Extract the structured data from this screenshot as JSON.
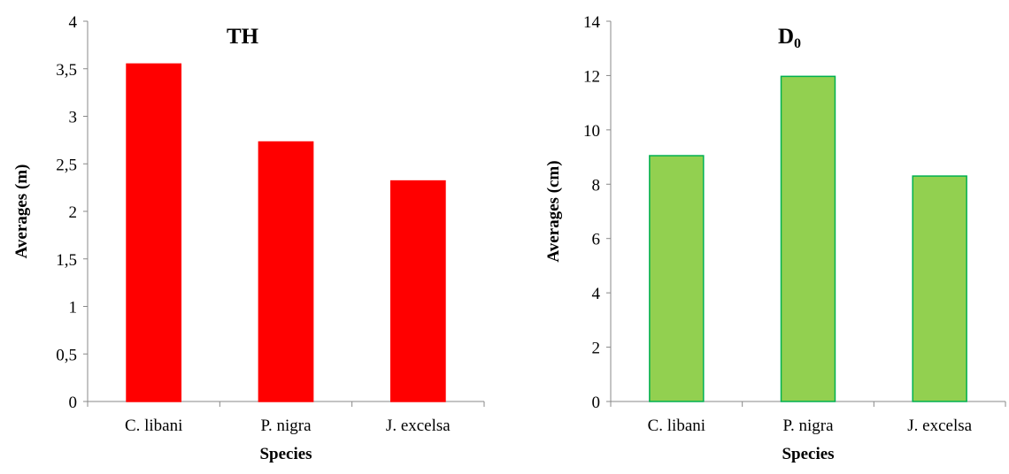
{
  "chart_data": [
    {
      "type": "bar",
      "title": "TH",
      "title_subscript": "",
      "xlabel": "Species",
      "ylabel": "Averages (m)",
      "categories": [
        "C. libani",
        "P. nigra",
        "J. excelsa"
      ],
      "values": [
        3.55,
        2.73,
        2.32
      ],
      "ylim": [
        0,
        4
      ],
      "yticks": [
        0,
        0.5,
        1,
        1.5,
        2,
        2.5,
        3,
        3.5,
        4
      ],
      "ytick_labels": [
        "0",
        "0,5",
        "1",
        "1,5",
        "2",
        "2,5",
        "3",
        "3,5",
        "4"
      ],
      "bar_color": "#ff0000",
      "bar_border": "#ff0000",
      "grid": false,
      "legend": "none"
    },
    {
      "type": "bar",
      "title": "D",
      "title_subscript": "0",
      "xlabel": "Species",
      "ylabel": "Averages (cm)",
      "categories": [
        "C. libani",
        "P. nigra",
        "J. excelsa"
      ],
      "values": [
        9.05,
        11.97,
        8.3
      ],
      "ylim": [
        0,
        14
      ],
      "yticks": [
        0,
        2,
        4,
        6,
        8,
        10,
        12,
        14
      ],
      "ytick_labels": [
        "0",
        "2",
        "4",
        "6",
        "8",
        "10",
        "12",
        "14"
      ],
      "bar_color": "#92d050",
      "bar_border": "#00b050",
      "grid": false,
      "legend": "none"
    }
  ]
}
